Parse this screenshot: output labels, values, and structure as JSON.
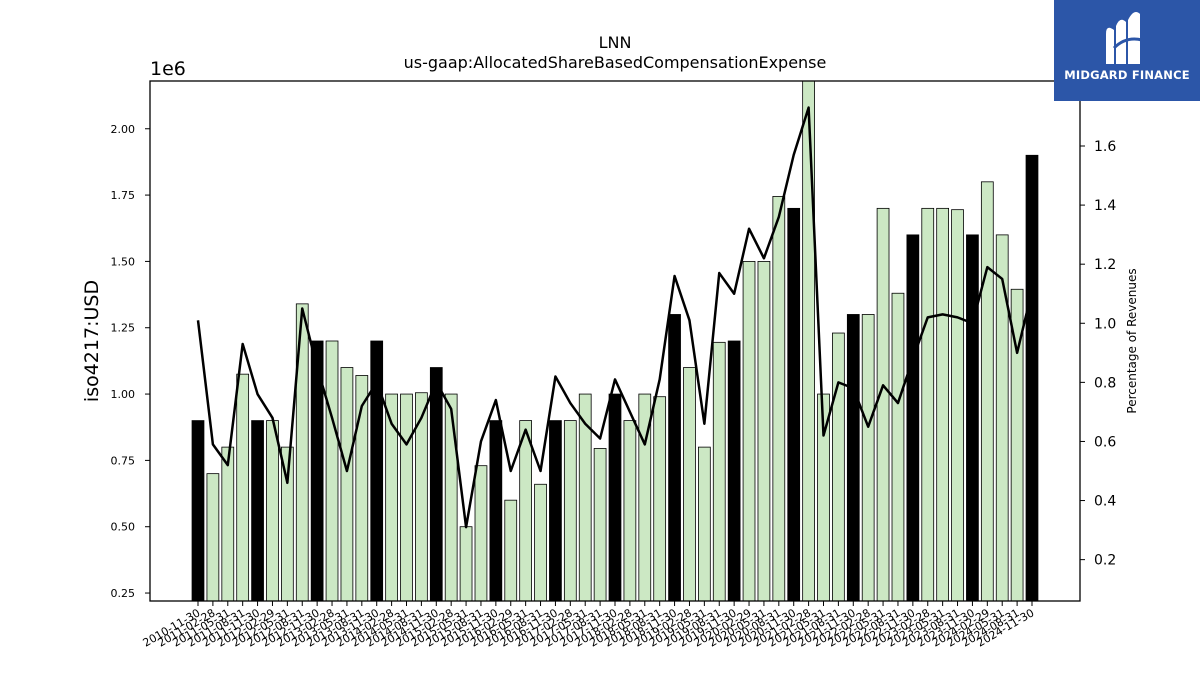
{
  "chart_data": {
    "type": "bar",
    "title": "LNN",
    "subtitle": "us-gaap:AllocatedShareBasedCompensationExpense",
    "ylabel": "iso4217:USD",
    "y_offset_label": "1e6",
    "y2label": "Percentage of Revenues",
    "ylim": [
      220000,
      2180000
    ],
    "y2lim": [
      0.06,
      1.82
    ],
    "yticks": [
      {
        "value": 250000,
        "label": "0.25"
      },
      {
        "value": 500000,
        "label": "0.50"
      },
      {
        "value": 750000,
        "label": "0.75"
      },
      {
        "value": 1000000,
        "label": "1.00"
      },
      {
        "value": 1250000,
        "label": "1.25"
      },
      {
        "value": 1500000,
        "label": "1.50"
      },
      {
        "value": 1750000,
        "label": "1.75"
      },
      {
        "value": 2000000,
        "label": "2.00"
      }
    ],
    "y2ticks": [
      {
        "value": 0.2,
        "label": "0.2"
      },
      {
        "value": 0.4,
        "label": "0.4"
      },
      {
        "value": 0.6,
        "label": "0.6"
      },
      {
        "value": 0.8,
        "label": "0.8"
      },
      {
        "value": 1.0,
        "label": "1.0"
      },
      {
        "value": 1.2,
        "label": "1.2"
      },
      {
        "value": 1.4,
        "label": "1.4"
      },
      {
        "value": 1.6,
        "label": "1.6"
      }
    ],
    "colors": {
      "annual": "#000000",
      "quarterly": "#cce8c4",
      "edge": "#000000",
      "line": "#000000"
    },
    "categories": [
      "2010-11-30",
      "2011-02-28",
      "2011-05-31",
      "2011-08-31",
      "2011-11-30",
      "2012-02-29",
      "2012-05-31",
      "2012-08-31",
      "2012-11-30",
      "2013-02-28",
      "2013-05-31",
      "2013-08-31",
      "2013-11-30",
      "2014-02-28",
      "2014-05-31",
      "2014-08-31",
      "2014-11-30",
      "2015-02-28",
      "2015-05-31",
      "2015-08-31",
      "2015-11-30",
      "2016-02-29",
      "2016-05-31",
      "2016-08-31",
      "2016-11-30",
      "2017-02-28",
      "2017-05-31",
      "2017-08-31",
      "2017-11-30",
      "2018-02-28",
      "2018-05-31",
      "2018-08-31",
      "2018-11-30",
      "2019-02-28",
      "2019-05-31",
      "2019-08-31",
      "2019-11-30",
      "2020-02-29",
      "2020-05-31",
      "2020-08-31",
      "2020-11-30",
      "2021-02-28",
      "2021-05-31",
      "2021-08-31",
      "2021-11-30",
      "2022-02-28",
      "2022-05-31",
      "2022-08-31",
      "2022-11-30",
      "2023-02-28",
      "2023-05-31",
      "2023-08-31",
      "2023-11-30",
      "2024-02-29",
      "2024-05-31",
      "2024-08-31",
      "2024-11-30"
    ],
    "annual": [
      true,
      false,
      false,
      false,
      true,
      false,
      false,
      false,
      true,
      false,
      false,
      false,
      true,
      false,
      false,
      false,
      true,
      false,
      false,
      false,
      true,
      false,
      false,
      false,
      true,
      false,
      false,
      false,
      true,
      false,
      false,
      false,
      true,
      false,
      false,
      false,
      true,
      false,
      false,
      false,
      true,
      false,
      false,
      false,
      true,
      false,
      false,
      false,
      true,
      false,
      false,
      false,
      true,
      false,
      false,
      false,
      true
    ],
    "series": [
      {
        "name": "iso4217:USD",
        "kind": "bar",
        "values": [
          900000,
          700000,
          800000,
          1075000,
          900000,
          900000,
          800000,
          1340000,
          1200000,
          1200000,
          1100000,
          1070000,
          1200000,
          1000000,
          1000000,
          1005000,
          1100000,
          1000000,
          500000,
          730000,
          900000,
          600000,
          900000,
          660000,
          900000,
          900000,
          1000000,
          795000,
          1000000,
          900000,
          1000000,
          990000,
          1300000,
          1100000,
          800000,
          1195000,
          1200000,
          1500000,
          1500000,
          1745000,
          1700000,
          2200000,
          1000000,
          1230000,
          1300000,
          1300000,
          1700000,
          1380000,
          1600000,
          1700000,
          1700000,
          1695000,
          1600000,
          1800000,
          1600000,
          1395000,
          1900000
        ]
      },
      {
        "name": "Percentage of Revenues",
        "kind": "line",
        "values": [
          1.01,
          0.59,
          0.52,
          0.93,
          0.76,
          0.68,
          0.46,
          1.05,
          0.85,
          0.68,
          0.5,
          0.72,
          0.8,
          0.66,
          0.59,
          0.68,
          0.8,
          0.71,
          0.31,
          0.6,
          0.74,
          0.5,
          0.64,
          0.5,
          0.82,
          0.73,
          0.66,
          0.61,
          0.81,
          0.7,
          0.59,
          0.81,
          1.16,
          1.01,
          0.66,
          1.17,
          1.1,
          1.32,
          1.22,
          1.36,
          1.57,
          1.73,
          0.62,
          0.8,
          0.78,
          0.65,
          0.79,
          0.73,
          0.88,
          1.02,
          1.03,
          1.02,
          1.0,
          1.19,
          1.15,
          0.9,
          1.11
        ]
      }
    ]
  },
  "logo": {
    "text": "MIDGARD FINANCE",
    "icon": "midgard-logo-icon"
  }
}
